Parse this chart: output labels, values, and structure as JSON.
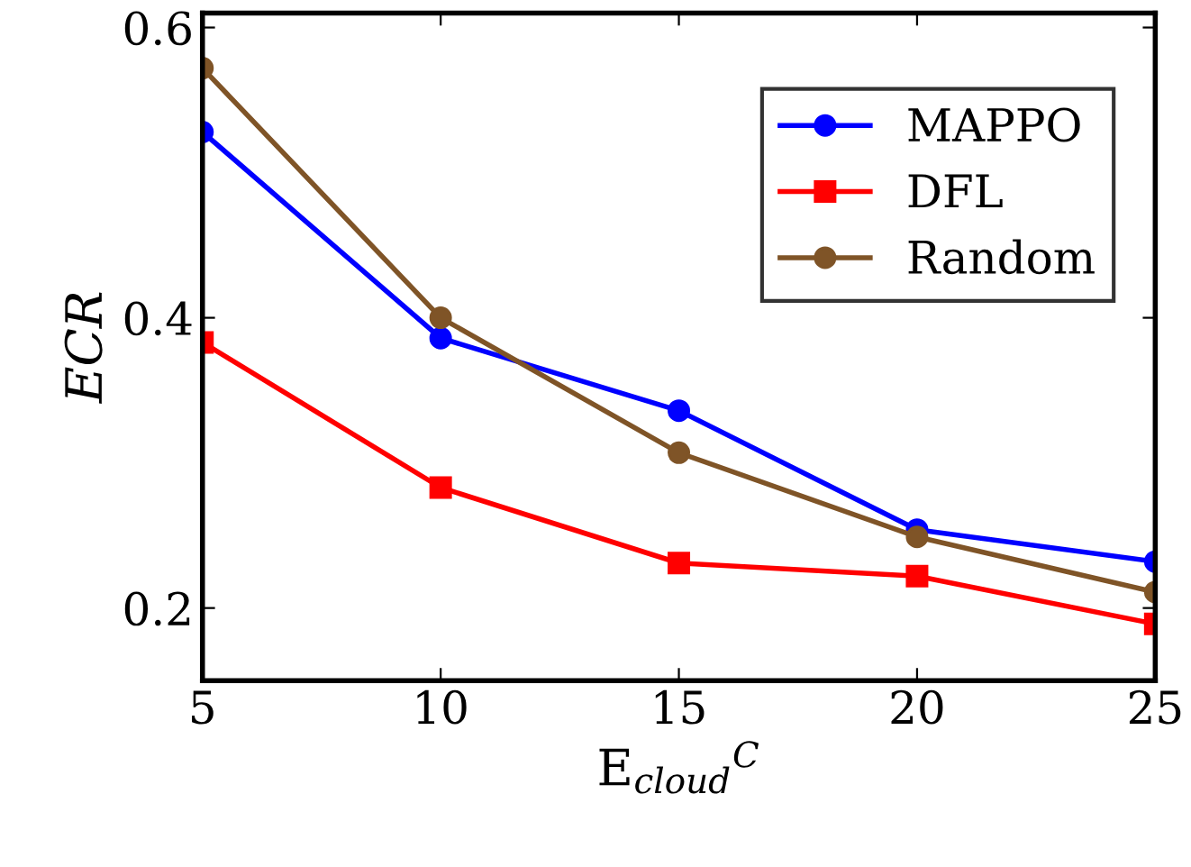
{
  "chart_data": {
    "type": "line",
    "xlabel": "E$_{cloud}$$^{C}$",
    "ylabel": "ECR",
    "x": [
      5,
      10,
      15,
      20,
      25
    ],
    "series": [
      {
        "name": "MAPPO",
        "color": "#0000ff",
        "marker": "circle",
        "values": [
          0.528,
          0.386,
          0.336,
          0.254,
          0.232
        ]
      },
      {
        "name": "DFL",
        "color": "#ff0000",
        "marker": "square",
        "values": [
          0.383,
          0.283,
          0.231,
          0.222,
          0.189
        ]
      },
      {
        "name": "Random",
        "color": "#7f5427",
        "marker": "circle",
        "values": [
          0.572,
          0.4,
          0.307,
          0.249,
          0.211
        ]
      }
    ],
    "xlim": [
      5,
      25
    ],
    "ylim": [
      0.15,
      0.61
    ],
    "xticks": [
      5,
      10,
      15,
      20,
      25
    ],
    "yticks": [
      0.2,
      0.4,
      0.6
    ],
    "grid": false,
    "legend": "top right",
    "line_style": "solid"
  }
}
